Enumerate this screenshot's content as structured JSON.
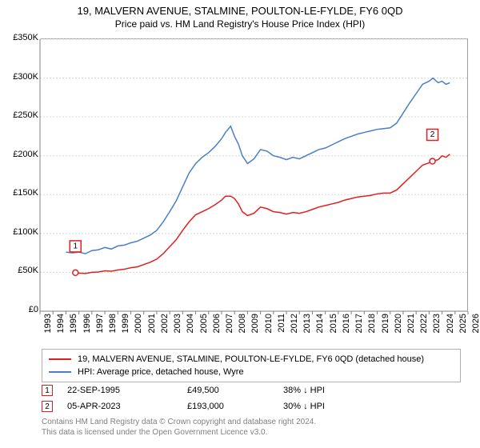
{
  "title": "19, MALVERN AVENUE, STALMINE, POULTON-LE-FYLDE, FY6 0QD",
  "subtitle": "Price paid vs. HM Land Registry's House Price Index (HPI)",
  "chart": {
    "type": "line",
    "background_color": "#ffffff",
    "grid_color": "#d8d8d8",
    "axis_color": "#808080",
    "ylim": [
      0,
      350000
    ],
    "ytick_step": 50000,
    "yticks": [
      "£0",
      "£50K",
      "£100K",
      "£150K",
      "£200K",
      "£250K",
      "£300K",
      "£350K"
    ],
    "xlim": [
      1993,
      2026
    ],
    "xticks": [
      "1993",
      "1994",
      "1995",
      "1996",
      "1997",
      "1998",
      "1999",
      "2000",
      "2001",
      "2002",
      "2003",
      "2004",
      "2005",
      "2006",
      "2007",
      "2008",
      "2009",
      "2010",
      "2011",
      "2012",
      "2013",
      "2014",
      "2015",
      "2016",
      "2017",
      "2018",
      "2019",
      "2020",
      "2021",
      "2022",
      "2023",
      "2024",
      "2025",
      "2026"
    ],
    "title_fontsize": 13,
    "subtitle_fontsize": 12,
    "tick_fontsize": 11,
    "series": [
      {
        "name": "hpi",
        "label": "HPI: Average price, detached house, Wyre",
        "color": "#4a7fc4",
        "line_width": 1.5,
        "data": [
          [
            1995.0,
            76000
          ],
          [
            1995.5,
            75000
          ],
          [
            1996.0,
            76000
          ],
          [
            1996.5,
            74000
          ],
          [
            1997.0,
            78000
          ],
          [
            1997.5,
            79000
          ],
          [
            1998.0,
            82000
          ],
          [
            1998.5,
            80000
          ],
          [
            1999.0,
            84000
          ],
          [
            1999.5,
            85000
          ],
          [
            2000.0,
            88000
          ],
          [
            2000.5,
            90000
          ],
          [
            2001.0,
            94000
          ],
          [
            2001.5,
            98000
          ],
          [
            2002.0,
            104000
          ],
          [
            2002.5,
            115000
          ],
          [
            2003.0,
            128000
          ],
          [
            2003.5,
            142000
          ],
          [
            2004.0,
            160000
          ],
          [
            2004.5,
            178000
          ],
          [
            2005.0,
            190000
          ],
          [
            2005.5,
            198000
          ],
          [
            2006.0,
            204000
          ],
          [
            2006.5,
            212000
          ],
          [
            2007.0,
            222000
          ],
          [
            2007.3,
            230000
          ],
          [
            2007.7,
            238000
          ],
          [
            2008.0,
            225000
          ],
          [
            2008.3,
            215000
          ],
          [
            2008.6,
            200000
          ],
          [
            2009.0,
            190000
          ],
          [
            2009.5,
            196000
          ],
          [
            2010.0,
            208000
          ],
          [
            2010.5,
            206000
          ],
          [
            2011.0,
            200000
          ],
          [
            2011.5,
            198000
          ],
          [
            2012.0,
            195000
          ],
          [
            2012.5,
            198000
          ],
          [
            2013.0,
            196000
          ],
          [
            2013.5,
            200000
          ],
          [
            2014.0,
            204000
          ],
          [
            2014.5,
            208000
          ],
          [
            2015.0,
            210000
          ],
          [
            2015.5,
            214000
          ],
          [
            2016.0,
            218000
          ],
          [
            2016.5,
            222000
          ],
          [
            2017.0,
            225000
          ],
          [
            2017.5,
            228000
          ],
          [
            2018.0,
            230000
          ],
          [
            2018.5,
            232000
          ],
          [
            2019.0,
            234000
          ],
          [
            2019.5,
            235000
          ],
          [
            2020.0,
            236000
          ],
          [
            2020.5,
            242000
          ],
          [
            2021.0,
            255000
          ],
          [
            2021.5,
            268000
          ],
          [
            2022.0,
            280000
          ],
          [
            2022.5,
            292000
          ],
          [
            2023.0,
            296000
          ],
          [
            2023.3,
            300000
          ],
          [
            2023.7,
            294000
          ],
          [
            2024.0,
            296000
          ],
          [
            2024.3,
            292000
          ],
          [
            2024.6,
            294000
          ]
        ]
      },
      {
        "name": "property",
        "label": "19, MALVERN AVENUE, STALMINE, POULTON-LE-FYLDE, FY6 0QD (detached house)",
        "color": "#e02020",
        "line_width": 1.5,
        "data": [
          [
            1995.73,
            49500
          ],
          [
            1996.0,
            49000
          ],
          [
            1996.5,
            48500
          ],
          [
            1997.0,
            50000
          ],
          [
            1997.5,
            50500
          ],
          [
            1998.0,
            52000
          ],
          [
            1998.5,
            51500
          ],
          [
            1999.0,
            53000
          ],
          [
            1999.5,
            54000
          ],
          [
            2000.0,
            56000
          ],
          [
            2000.5,
            57000
          ],
          [
            2001.0,
            60000
          ],
          [
            2001.5,
            63000
          ],
          [
            2002.0,
            67000
          ],
          [
            2002.5,
            74000
          ],
          [
            2003.0,
            83000
          ],
          [
            2003.5,
            92000
          ],
          [
            2004.0,
            104000
          ],
          [
            2004.5,
            115000
          ],
          [
            2005.0,
            124000
          ],
          [
            2005.5,
            128000
          ],
          [
            2006.0,
            132000
          ],
          [
            2006.5,
            137000
          ],
          [
            2007.0,
            143000
          ],
          [
            2007.3,
            148000
          ],
          [
            2007.7,
            148000
          ],
          [
            2008.0,
            145000
          ],
          [
            2008.3,
            138000
          ],
          [
            2008.6,
            128000
          ],
          [
            2009.0,
            123000
          ],
          [
            2009.5,
            126000
          ],
          [
            2010.0,
            134000
          ],
          [
            2010.5,
            132000
          ],
          [
            2011.0,
            128000
          ],
          [
            2011.5,
            127000
          ],
          [
            2012.0,
            125000
          ],
          [
            2012.5,
            127000
          ],
          [
            2013.0,
            126000
          ],
          [
            2013.5,
            128000
          ],
          [
            2014.0,
            131000
          ],
          [
            2014.5,
            134000
          ],
          [
            2015.0,
            136000
          ],
          [
            2015.5,
            138000
          ],
          [
            2016.0,
            140000
          ],
          [
            2016.5,
            143000
          ],
          [
            2017.0,
            145000
          ],
          [
            2017.5,
            147000
          ],
          [
            2018.0,
            148000
          ],
          [
            2018.5,
            149000
          ],
          [
            2019.0,
            151000
          ],
          [
            2019.5,
            152000
          ],
          [
            2020.0,
            152000
          ],
          [
            2020.5,
            156000
          ],
          [
            2021.0,
            164000
          ],
          [
            2021.5,
            172000
          ],
          [
            2022.0,
            180000
          ],
          [
            2022.5,
            188000
          ],
          [
            2023.0,
            191000
          ],
          [
            2023.26,
            193000
          ],
          [
            2023.7,
            195000
          ],
          [
            2024.0,
            200000
          ],
          [
            2024.3,
            198000
          ],
          [
            2024.6,
            202000
          ]
        ]
      }
    ],
    "markers": [
      {
        "id": "1",
        "x": 1995.73,
        "y": 49500,
        "color": "#e02020",
        "dot": true
      },
      {
        "id": "2",
        "x": 2023.26,
        "y": 193000,
        "color": "#e02020",
        "dot": true
      }
    ]
  },
  "legend": {
    "items": [
      {
        "color": "#e02020",
        "label": "19, MALVERN AVENUE, STALMINE, POULTON-LE-FYLDE, FY6 0QD (detached house)"
      },
      {
        "color": "#4a7fc4",
        "label": "HPI: Average price, detached house, Wyre"
      }
    ]
  },
  "points": [
    {
      "marker": "1",
      "color": "#e02020",
      "date": "22-SEP-1995",
      "price": "£49,500",
      "pct": "38% ↓ HPI"
    },
    {
      "marker": "2",
      "color": "#e02020",
      "date": "05-APR-2023",
      "price": "£193,000",
      "pct": "30% ↓ HPI"
    }
  ],
  "footer_line1": "Contains HM Land Registry data © Crown copyright and database right 2024.",
  "footer_line2": "This data is licensed under the Open Government Licence v3.0."
}
